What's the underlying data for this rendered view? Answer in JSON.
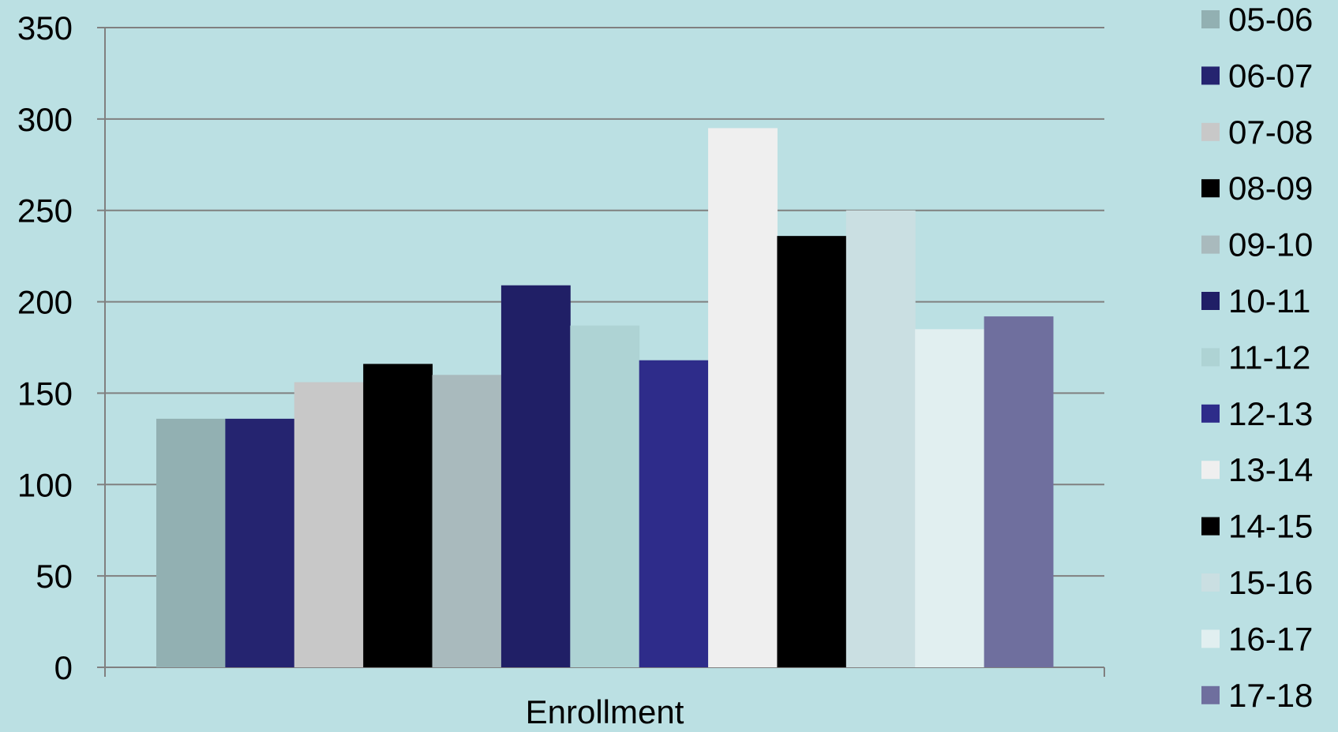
{
  "chart_data": {
    "type": "bar",
    "categories": [
      "Enrollment"
    ],
    "xlabel": "",
    "ylabel": "",
    "title": "",
    "ylim": [
      0,
      350
    ],
    "yticks": [
      0,
      50,
      100,
      150,
      200,
      250,
      300,
      350
    ],
    "grid": true,
    "legend_position": "right",
    "series": [
      {
        "name": "05-06",
        "values": [
          136
        ],
        "color": "#92b0b2"
      },
      {
        "name": "06-07",
        "values": [
          136
        ],
        "color": "#252470"
      },
      {
        "name": "07-08",
        "values": [
          156
        ],
        "color": "#c8c8c8"
      },
      {
        "name": "08-09",
        "values": [
          166
        ],
        "color": "#000000"
      },
      {
        "name": "09-10",
        "values": [
          160
        ],
        "color": "#a9babd"
      },
      {
        "name": "10-11",
        "values": [
          209
        ],
        "color": "#201f66"
      },
      {
        "name": "11-12",
        "values": [
          187
        ],
        "color": "#aed3d4"
      },
      {
        "name": "12-13",
        "values": [
          168
        ],
        "color": "#2e2c8a"
      },
      {
        "name": "13-14",
        "values": [
          295
        ],
        "color": "#efefef"
      },
      {
        "name": "14-15",
        "values": [
          236
        ],
        "color": "#000000"
      },
      {
        "name": "15-16",
        "values": [
          250
        ],
        "color": "#cadfe2"
      },
      {
        "name": "16-17",
        "values": [
          185
        ],
        "color": "#e1eff0"
      },
      {
        "name": "17-18",
        "values": [
          192
        ],
        "color": "#6f6f9e"
      }
    ]
  },
  "colors": {
    "background": "#bbe0e3",
    "gridline": "#808080",
    "axis": "#808080"
  }
}
